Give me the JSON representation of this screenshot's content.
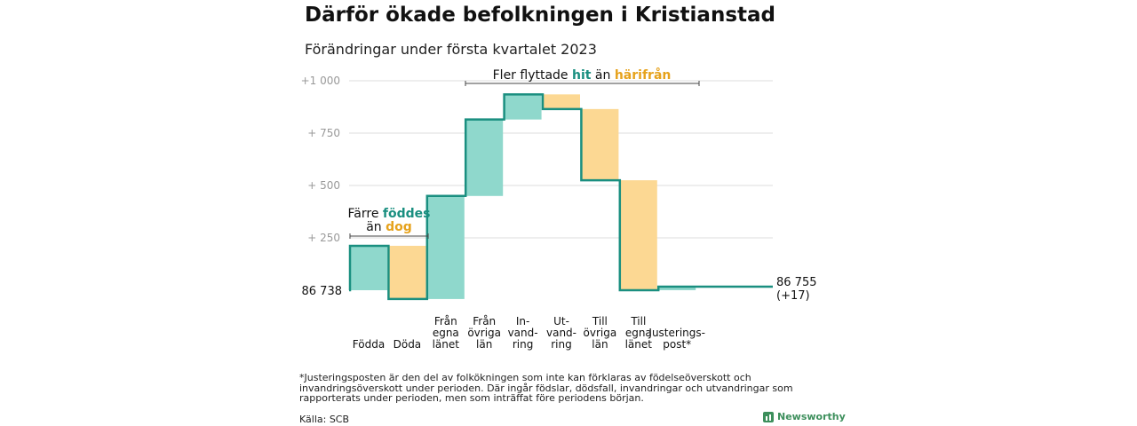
{
  "title": "Därför ökade befolkningen i Kristianstad",
  "subtitle": "Förändringar under första kvartalet 2023",
  "footnote": "*Justeringsposten är den del av folkökningen som inte kan förklaras av födelseöverskott och invandringsöverskott under perioden. Där ingår födslar, dödsfall, invandringar och utvandringar som rapporterats under perioden, men som inträffat före periodens början.",
  "source": "Källa: SCB",
  "brand": "Newsworthy",
  "colors": {
    "increase": "#8fd8cc",
    "decrease": "#fcd893",
    "line": "#1a8f80",
    "increase_text": "#1a8f80",
    "decrease_text": "#e6a21c",
    "grid": "#dddddd",
    "tick_text": "#999999"
  },
  "annotations": {
    "left": {
      "line1": "Färre ",
      "line1_emph": "föddes",
      "line2": "än ",
      "line2_emph": "dog"
    },
    "right": {
      "prefix": "Fler flyttade ",
      "emph1": "hit",
      "mid": " än ",
      "emph2": "härifrån"
    }
  },
  "chart_data": {
    "type": "waterfall",
    "start": {
      "label": "86 738",
      "value": 86738
    },
    "end": {
      "label": "86 755",
      "sublabel": "(+17)",
      "value": 86755
    },
    "y_ticks": [
      {
        "value": 250,
        "label": "+ 250"
      },
      {
        "value": 500,
        "label": "+ 500"
      },
      {
        "value": 750,
        "label": "+ 750"
      },
      {
        "value": 1000,
        "label": "+1 000"
      }
    ],
    "ylim": [
      -50,
      1000
    ],
    "grid": true,
    "steps": [
      {
        "label": [
          "Födda"
        ],
        "type": "increase",
        "from": 0,
        "to": 212
      },
      {
        "label": [
          "Döda"
        ],
        "type": "decrease",
        "from": 212,
        "to": -42
      },
      {
        "label": [
          "Från",
          "egna",
          "länet"
        ],
        "type": "increase",
        "from": -42,
        "to": 450
      },
      {
        "label": [
          "Från",
          "övriga",
          "län"
        ],
        "type": "increase",
        "from": 450,
        "to": 815
      },
      {
        "label": [
          "In-",
          "vand-",
          "ring"
        ],
        "type": "increase",
        "from": 815,
        "to": 935
      },
      {
        "label": [
          "Ut-",
          "vand-",
          "ring"
        ],
        "type": "decrease",
        "from": 935,
        "to": 865
      },
      {
        "label": [
          "Till",
          "övriga",
          "län"
        ],
        "type": "decrease",
        "from": 865,
        "to": 525
      },
      {
        "label": [
          "Till",
          "egna",
          "länet"
        ],
        "type": "decrease",
        "from": 525,
        "to": 0
      },
      {
        "label": [
          "Justerings-",
          "post*"
        ],
        "type": "increase",
        "from": 0,
        "to": 17
      }
    ]
  }
}
